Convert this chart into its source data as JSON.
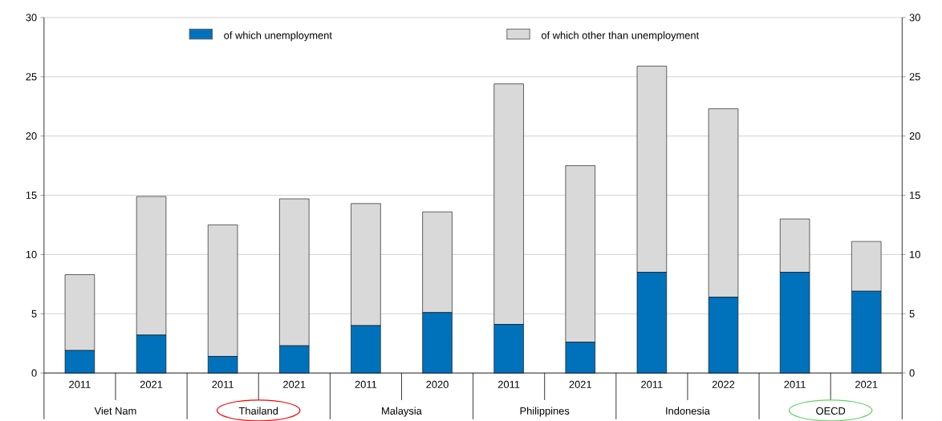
{
  "chart_data": {
    "type": "bar",
    "stacked": true,
    "categories": [
      "2011",
      "2021",
      "2011",
      "2021",
      "2011",
      "2020",
      "2011",
      "2021",
      "2011",
      "2022",
      "2011",
      "2021"
    ],
    "series": [
      {
        "name": "of which unemployment",
        "color": "#0072bc",
        "values": [
          1.9,
          3.2,
          1.4,
          2.3,
          4.0,
          5.1,
          4.1,
          2.6,
          8.5,
          6.4,
          8.5,
          6.9
        ]
      },
      {
        "name": "of which other than unemployment",
        "color": "#d9d9d9",
        "values": [
          6.4,
          11.7,
          11.1,
          12.4,
          10.3,
          8.5,
          20.3,
          14.9,
          17.4,
          15.9,
          4.5,
          4.2
        ]
      }
    ],
    "ylim": [
      0,
      30
    ],
    "yticks": [
      0,
      5,
      10,
      15,
      20,
      25,
      30
    ],
    "y2lim": [
      0,
      30
    ],
    "y2ticks": [
      0,
      5,
      10,
      15,
      20,
      25,
      30
    ],
    "grid": "y",
    "legend": "top",
    "annotations": [
      "Viet Nam",
      "Thailand",
      "Malaysia",
      "Philippines",
      "Indonesia",
      "OECD"
    ]
  }
}
